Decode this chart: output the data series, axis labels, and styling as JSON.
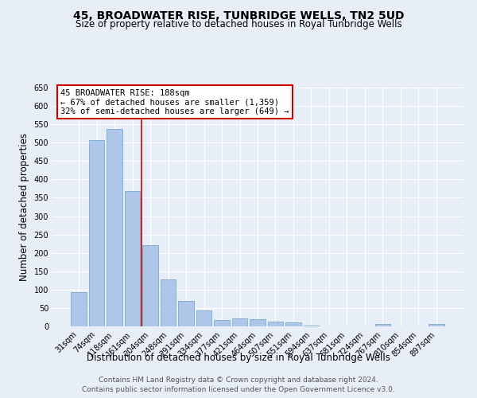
{
  "title": "45, BROADWATER RISE, TUNBRIDGE WELLS, TN2 5UD",
  "subtitle": "Size of property relative to detached houses in Royal Tunbridge Wells",
  "xlabel": "Distribution of detached houses by size in Royal Tunbridge Wells",
  "ylabel": "Number of detached properties",
  "footnote1": "Contains HM Land Registry data © Crown copyright and database right 2024.",
  "footnote2": "Contains public sector information licensed under the Open Government Licence v3.0.",
  "categories": [
    "31sqm",
    "74sqm",
    "118sqm",
    "161sqm",
    "204sqm",
    "248sqm",
    "291sqm",
    "334sqm",
    "377sqm",
    "421sqm",
    "464sqm",
    "507sqm",
    "551sqm",
    "594sqm",
    "637sqm",
    "681sqm",
    "724sqm",
    "767sqm",
    "810sqm",
    "854sqm",
    "897sqm"
  ],
  "values": [
    93,
    508,
    537,
    368,
    220,
    127,
    70,
    43,
    18,
    21,
    20,
    12,
    10,
    3,
    1,
    1,
    1,
    7,
    1,
    1,
    6
  ],
  "bar_color": "#aec6e8",
  "bar_edge_color": "#6aa0c7",
  "vline_x": 3.5,
  "vline_color": "#cc0000",
  "annotation_text": "45 BROADWATER RISE: 188sqm\n← 67% of detached houses are smaller (1,359)\n32% of semi-detached houses are larger (649) →",
  "annotation_box_color": "#cc0000",
  "ylim": [
    0,
    650
  ],
  "yticks": [
    0,
    50,
    100,
    150,
    200,
    250,
    300,
    350,
    400,
    450,
    500,
    550,
    600,
    650
  ],
  "background_color": "#e8eef7",
  "plot_bg_color": "#e8eef7",
  "title_fontsize": 10,
  "subtitle_fontsize": 8.5,
  "xlabel_fontsize": 8.5,
  "ylabel_fontsize": 8.5,
  "tick_fontsize": 7,
  "annotation_fontsize": 7.5,
  "footnote_fontsize": 6.5
}
